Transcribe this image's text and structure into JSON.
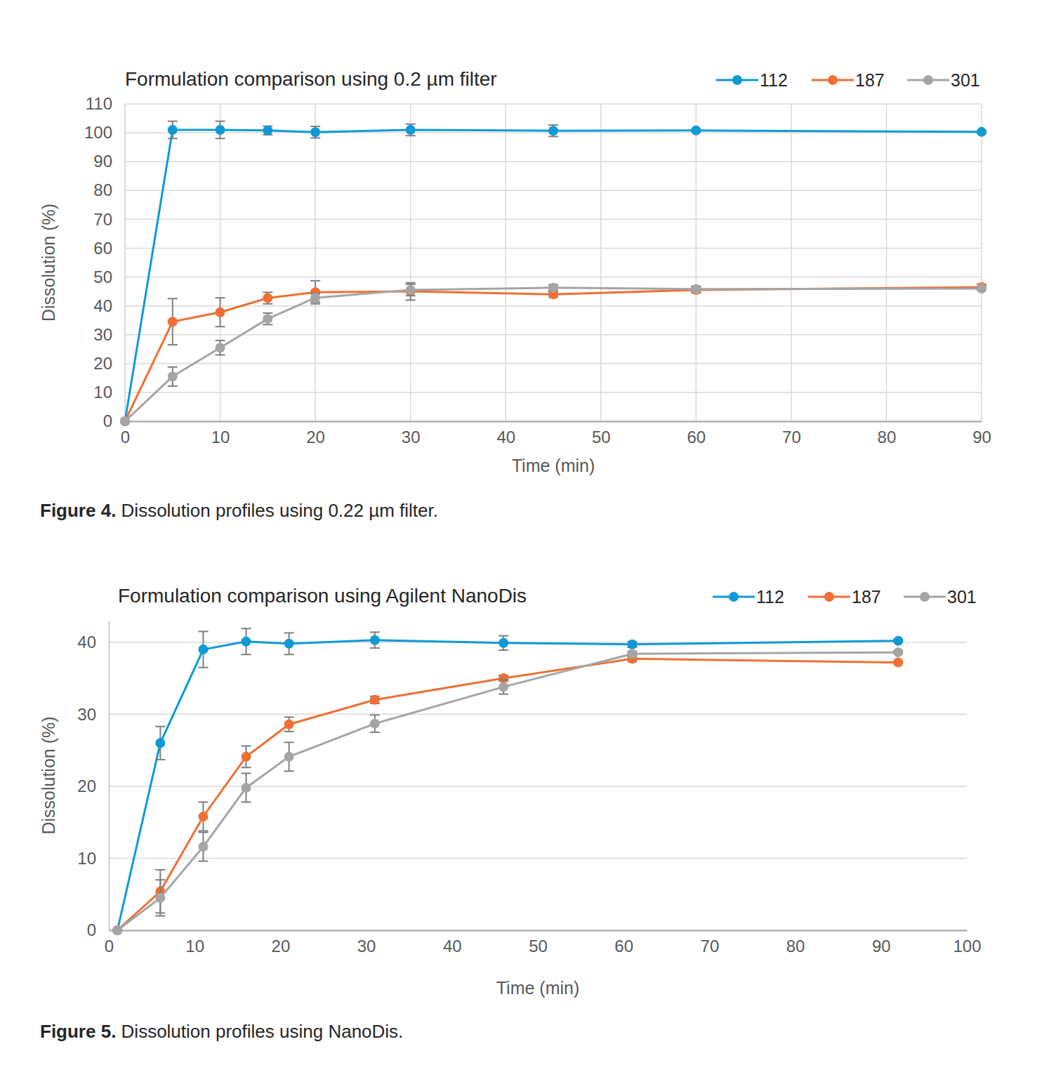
{
  "chart_data": [
    {
      "type": "line",
      "title": "Formulation comparison using 0.2 µm filter",
      "x_label": "Time (min)",
      "y_label": "Dissolution (%)",
      "caption": {
        "label": "Figure 4.",
        "text": "Dissolution profiles using 0.22 µm filter."
      },
      "x": [
        0,
        5,
        10,
        15,
        20,
        30,
        45,
        60,
        90
      ],
      "xlim": [
        0,
        90
      ],
      "xticks": [
        0,
        10,
        20,
        30,
        40,
        50,
        60,
        70,
        80,
        90
      ],
      "ylim": [
        0,
        110
      ],
      "yticks": [
        0,
        10,
        20,
        30,
        40,
        50,
        60,
        70,
        80,
        90,
        100,
        110
      ],
      "grid": true,
      "legend": "top-right",
      "marker": "circle",
      "series": [
        {
          "name": "112",
          "color": "#0f9ad6",
          "values": [
            0,
            101,
            101,
            100.8,
            100.2,
            101,
            100.7,
            100.8,
            100.3
          ],
          "errors": [
            0,
            3,
            3,
            1.5,
            2,
            2,
            2,
            0.5,
            0.5
          ]
        },
        {
          "name": "187",
          "color": "#ee7033",
          "values": [
            0,
            34.5,
            37.8,
            42.7,
            44.7,
            45,
            44,
            45.5,
            46.5
          ],
          "errors": [
            0,
            8,
            5,
            2,
            4,
            3,
            1,
            1,
            1
          ]
        },
        {
          "name": "301",
          "color": "#a5a5a5",
          "values": [
            0,
            15.5,
            25.5,
            35.5,
            42.8,
            45.5,
            46.3,
            45.8,
            46
          ],
          "errors": [
            0,
            3.3,
            2.5,
            2,
            1.5,
            2,
            1,
            1,
            0.5
          ]
        }
      ]
    },
    {
      "type": "line",
      "title": "Formulation comparison using Agilent NanoDis",
      "x_label": "Time (min)",
      "y_label": "Dissolution (%)",
      "caption": {
        "label": "Figure 5.",
        "text": "Dissolution profiles using NanoDis."
      },
      "x": [
        1,
        6,
        11,
        16,
        21,
        31,
        46,
        61,
        92
      ],
      "xlim": [
        0,
        100
      ],
      "xticks": [
        0,
        10,
        20,
        30,
        40,
        50,
        60,
        70,
        80,
        90,
        100
      ],
      "ylim": [
        0,
        43
      ],
      "yticks": [
        0,
        10,
        20,
        30,
        40
      ],
      "grid": "y",
      "legend": "top-right",
      "marker": "circle",
      "series": [
        {
          "name": "112",
          "color": "#0f9ad6",
          "values": [
            0,
            26,
            39,
            40.1,
            39.8,
            40.3,
            39.9,
            39.7,
            40.2
          ],
          "errors": [
            0,
            2.3,
            2.5,
            1.8,
            1.5,
            1.1,
            1,
            0.4,
            0.2
          ]
        },
        {
          "name": "187",
          "color": "#ee7033",
          "values": [
            0,
            5.4,
            15.8,
            24.1,
            28.6,
            32,
            35,
            37.7,
            37.2
          ],
          "errors": [
            0,
            3,
            2,
            1.5,
            1,
            0.5,
            0.4,
            0.4,
            0.2
          ]
        },
        {
          "name": "301",
          "color": "#a5a5a5",
          "values": [
            0,
            4.5,
            11.6,
            19.8,
            24.1,
            28.7,
            33.8,
            38.4,
            38.6
          ],
          "errors": [
            0,
            2.5,
            2,
            2,
            2,
            1.2,
            1,
            0.3,
            0.2
          ]
        }
      ]
    }
  ]
}
